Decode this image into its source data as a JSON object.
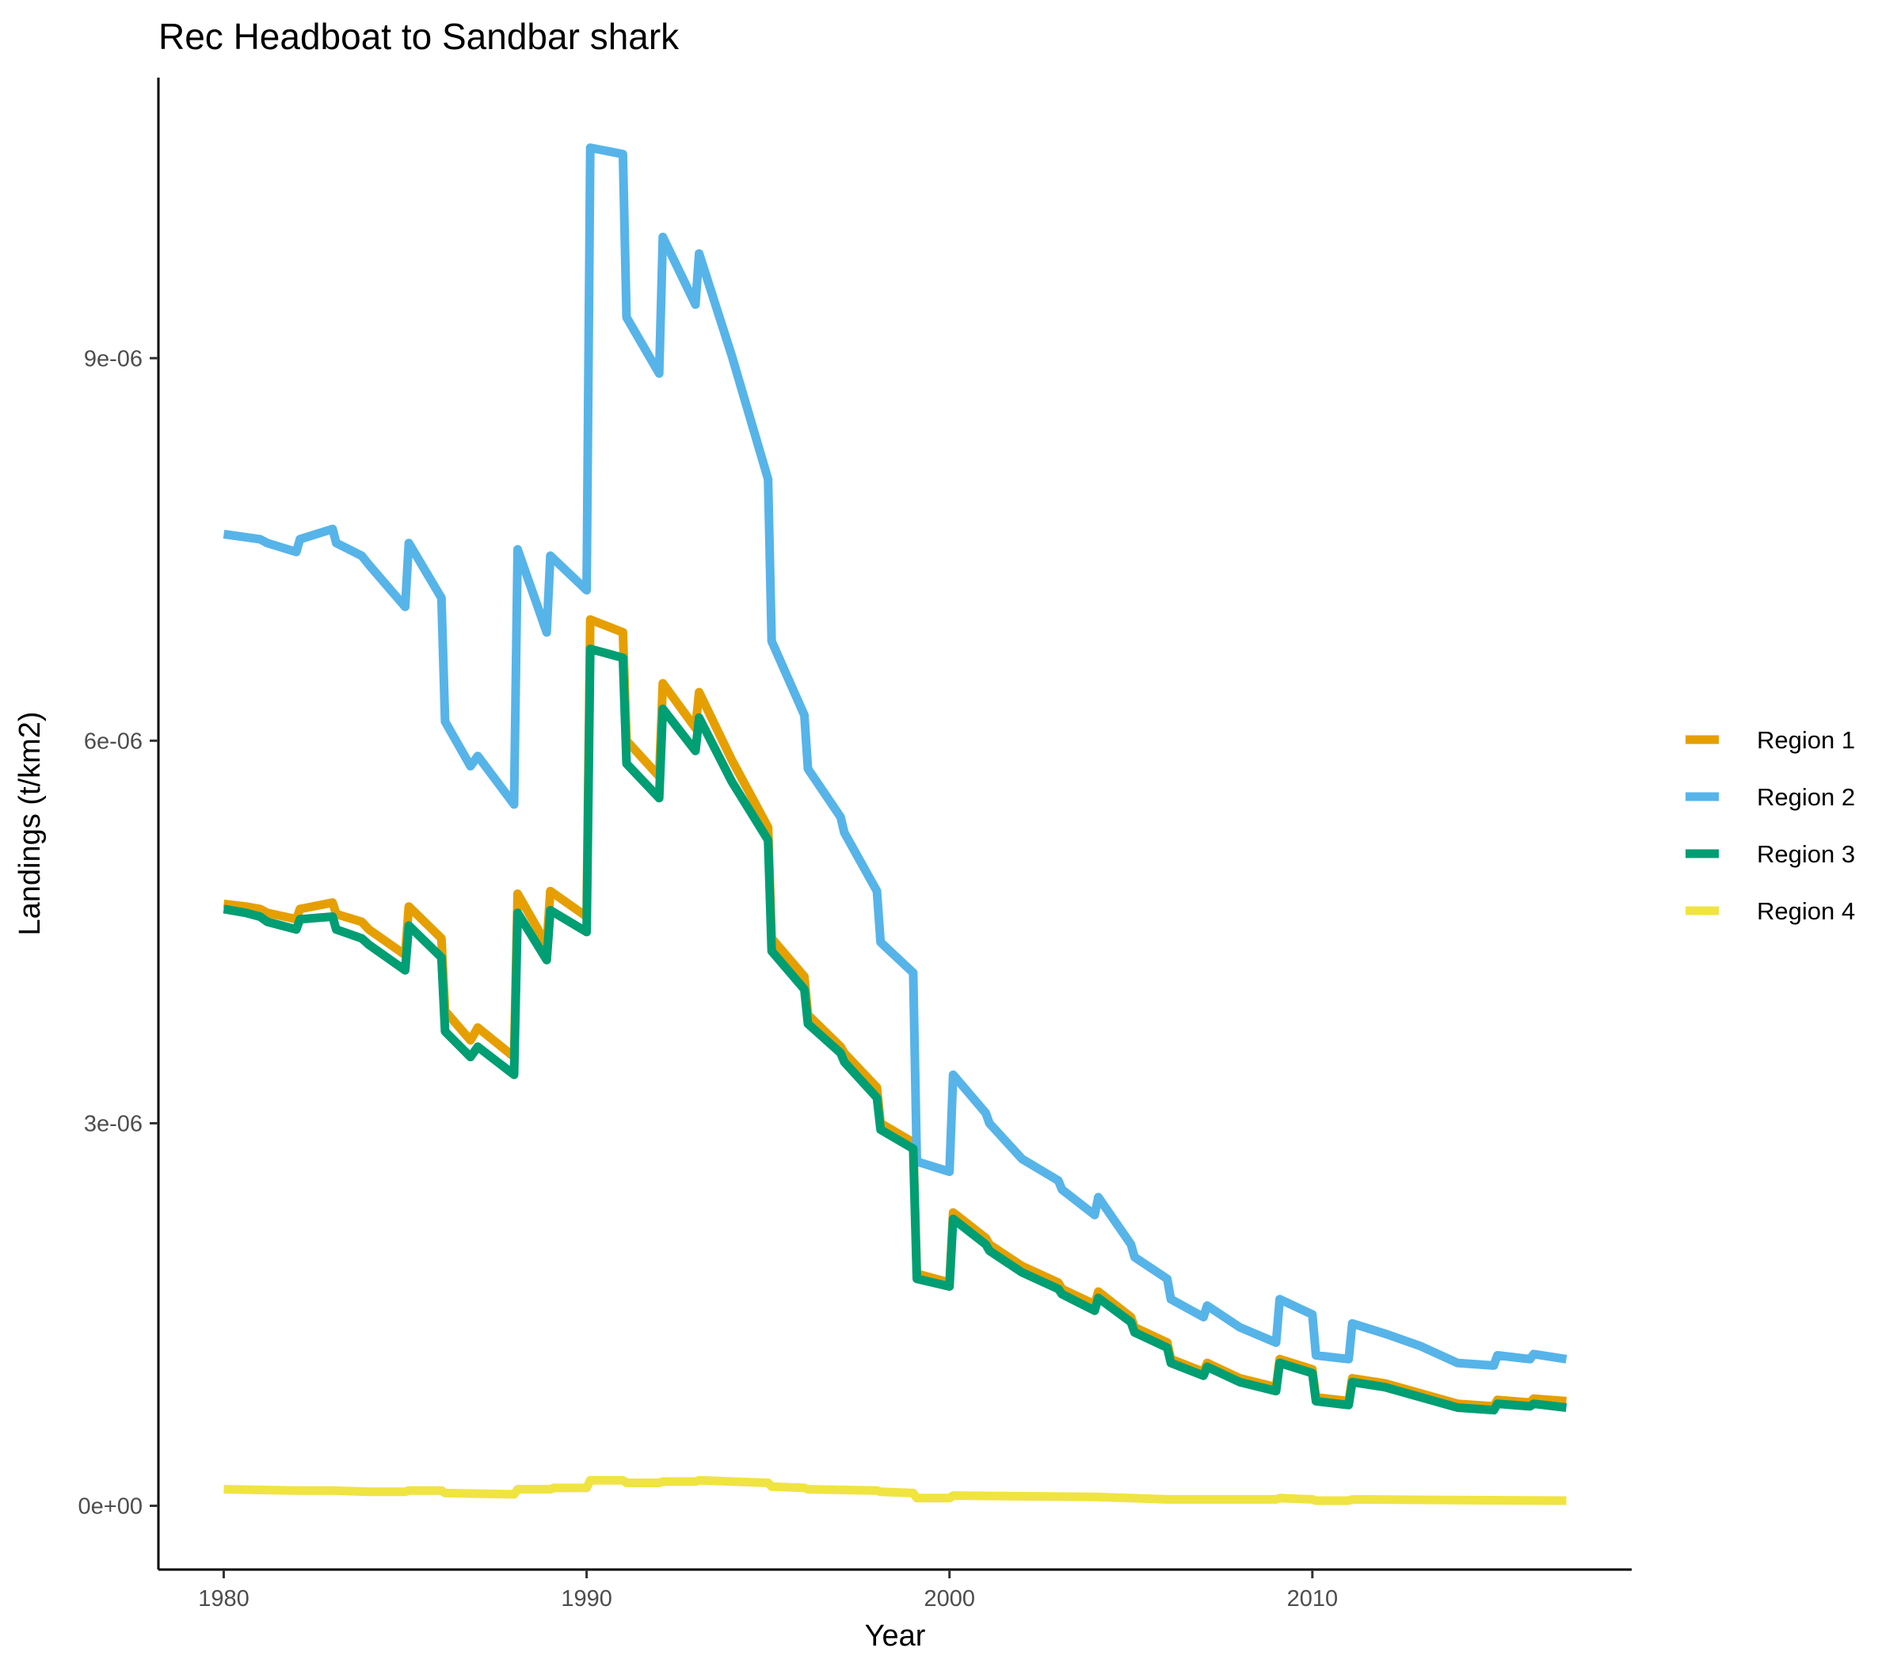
{
  "chart_data": {
    "type": "line",
    "title": "Rec Headboat to Sandbar shark",
    "xlabel": "Year",
    "ylabel": "Landings (t/km2)",
    "xlim": [
      1978.2,
      2018.8
    ],
    "ylim": [
      -5e-07,
      1.12e-05
    ],
    "x_ticks": [
      1980,
      1990,
      2000,
      2010
    ],
    "x_tick_labels": [
      "1980",
      "1990",
      "2000",
      "2010"
    ],
    "y_ticks": [
      0,
      3e-06,
      6e-06,
      9e-06
    ],
    "y_tick_labels": [
      "0e+00",
      "3e-06",
      "6e-06",
      "9e-06"
    ],
    "grid": false,
    "legend_position": "right",
    "series": [
      {
        "name": "Region 1",
        "color": "#E69F00",
        "points": [
          [
            1980.0,
            4.72e-06
          ],
          [
            1980.6,
            4.7e-06
          ],
          [
            1981.0,
            4.68e-06
          ],
          [
            1981.2,
            4.65e-06
          ],
          [
            1982.0,
            4.6e-06
          ],
          [
            1982.1,
            4.68e-06
          ],
          [
            1983.0,
            4.73e-06
          ],
          [
            1983.1,
            4.64e-06
          ],
          [
            1983.8,
            4.58e-06
          ],
          [
            1984.0,
            4.52e-06
          ],
          [
            1985.0,
            4.32e-06
          ],
          [
            1985.1,
            4.7e-06
          ],
          [
            1986.0,
            4.45e-06
          ],
          [
            1986.1,
            3.88e-06
          ],
          [
            1986.8,
            3.65e-06
          ],
          [
            1987.0,
            3.75e-06
          ],
          [
            1988.0,
            3.52e-06
          ],
          [
            1988.1,
            4.8e-06
          ],
          [
            1988.9,
            4.4e-06
          ],
          [
            1989.0,
            4.82e-06
          ],
          [
            1990.0,
            4.62e-06
          ],
          [
            1990.1,
            6.95e-06
          ],
          [
            1991.0,
            6.85e-06
          ],
          [
            1991.1,
            6e-06
          ],
          [
            1992.0,
            5.72e-06
          ],
          [
            1992.1,
            6.45e-06
          ],
          [
            1993.0,
            6.1e-06
          ],
          [
            1993.1,
            6.38e-06
          ],
          [
            1994.0,
            5.85e-06
          ],
          [
            1995.0,
            5.32e-06
          ],
          [
            1995.1,
            4.45e-06
          ],
          [
            1996.0,
            4.15e-06
          ],
          [
            1996.1,
            3.85e-06
          ],
          [
            1997.0,
            3.6e-06
          ],
          [
            1997.1,
            3.55e-06
          ],
          [
            1998.0,
            3.28e-06
          ],
          [
            1998.1,
            3e-06
          ],
          [
            1999.0,
            2.85e-06
          ],
          [
            1999.1,
            1.82e-06
          ],
          [
            2000.0,
            1.75e-06
          ],
          [
            2000.1,
            2.3e-06
          ],
          [
            2001.0,
            2.1e-06
          ],
          [
            2001.1,
            2.05e-06
          ],
          [
            2002.0,
            1.88e-06
          ],
          [
            2003.0,
            1.75e-06
          ],
          [
            2003.1,
            1.7e-06
          ],
          [
            2004.0,
            1.58e-06
          ],
          [
            2004.1,
            1.68e-06
          ],
          [
            2005.0,
            1.48e-06
          ],
          [
            2005.1,
            1.4e-06
          ],
          [
            2006.0,
            1.28e-06
          ],
          [
            2006.1,
            1.15e-06
          ],
          [
            2007.0,
            1.05e-06
          ],
          [
            2007.1,
            1.12e-06
          ],
          [
            2008.0,
            1e-06
          ],
          [
            2009.0,
            9.3e-07
          ],
          [
            2009.1,
            1.15e-06
          ],
          [
            2010.0,
            1.07e-06
          ],
          [
            2010.1,
            8.5e-07
          ],
          [
            2011.0,
            8.2e-07
          ],
          [
            2011.1,
            1e-06
          ],
          [
            2012.0,
            9.6e-07
          ],
          [
            2013.0,
            8.8e-07
          ],
          [
            2014.0,
            8e-07
          ],
          [
            2015.0,
            7.8e-07
          ],
          [
            2015.1,
            8.3e-07
          ],
          [
            2016.0,
            8.1e-07
          ],
          [
            2016.1,
            8.4e-07
          ],
          [
            2017.0,
            8.2e-07
          ]
        ]
      },
      {
        "name": "Region 2",
        "color": "#56B4E9",
        "points": [
          [
            1980.0,
            7.62e-06
          ],
          [
            1981.0,
            7.58e-06
          ],
          [
            1981.2,
            7.55e-06
          ],
          [
            1982.0,
            7.48e-06
          ],
          [
            1982.1,
            7.58e-06
          ],
          [
            1983.0,
            7.66e-06
          ],
          [
            1983.1,
            7.55e-06
          ],
          [
            1983.8,
            7.45e-06
          ],
          [
            1984.0,
            7.38e-06
          ],
          [
            1985.0,
            7.05e-06
          ],
          [
            1985.1,
            7.55e-06
          ],
          [
            1986.0,
            7.12e-06
          ],
          [
            1986.1,
            6.15e-06
          ],
          [
            1986.8,
            5.8e-06
          ],
          [
            1987.0,
            5.88e-06
          ],
          [
            1988.0,
            5.5e-06
          ],
          [
            1988.1,
            7.5e-06
          ],
          [
            1988.9,
            6.85e-06
          ],
          [
            1989.0,
            7.45e-06
          ],
          [
            1990.0,
            7.18e-06
          ],
          [
            1990.1,
            1.065e-05
          ],
          [
            1991.0,
            1.06e-05
          ],
          [
            1991.1,
            9.32e-06
          ],
          [
            1992.0,
            8.88e-06
          ],
          [
            1992.1,
            9.95e-06
          ],
          [
            1993.0,
            9.42e-06
          ],
          [
            1993.1,
            9.82e-06
          ],
          [
            1994.0,
            9.02e-06
          ],
          [
            1995.0,
            8.05e-06
          ],
          [
            1995.1,
            6.78e-06
          ],
          [
            1996.0,
            6.2e-06
          ],
          [
            1996.1,
            5.78e-06
          ],
          [
            1997.0,
            5.4e-06
          ],
          [
            1997.1,
            5.28e-06
          ],
          [
            1998.0,
            4.82e-06
          ],
          [
            1998.1,
            4.42e-06
          ],
          [
            1999.0,
            4.18e-06
          ],
          [
            1999.1,
            2.7e-06
          ],
          [
            2000.0,
            2.62e-06
          ],
          [
            2000.1,
            3.38e-06
          ],
          [
            2001.0,
            3.08e-06
          ],
          [
            2001.1,
            3e-06
          ],
          [
            2002.0,
            2.72e-06
          ],
          [
            2003.0,
            2.55e-06
          ],
          [
            2003.1,
            2.48e-06
          ],
          [
            2004.0,
            2.28e-06
          ],
          [
            2004.1,
            2.42e-06
          ],
          [
            2005.0,
            2.05e-06
          ],
          [
            2005.1,
            1.95e-06
          ],
          [
            2006.0,
            1.78e-06
          ],
          [
            2006.1,
            1.62e-06
          ],
          [
            2007.0,
            1.48e-06
          ],
          [
            2007.1,
            1.57e-06
          ],
          [
            2008.0,
            1.4e-06
          ],
          [
            2009.0,
            1.28e-06
          ],
          [
            2009.1,
            1.62e-06
          ],
          [
            2010.0,
            1.5e-06
          ],
          [
            2010.1,
            1.18e-06
          ],
          [
            2011.0,
            1.15e-06
          ],
          [
            2011.1,
            1.43e-06
          ],
          [
            2012.0,
            1.35e-06
          ],
          [
            2013.0,
            1.25e-06
          ],
          [
            2014.0,
            1.12e-06
          ],
          [
            2015.0,
            1.1e-06
          ],
          [
            2015.1,
            1.18e-06
          ],
          [
            2016.0,
            1.15e-06
          ],
          [
            2016.1,
            1.19e-06
          ],
          [
            2017.0,
            1.15e-06
          ]
        ]
      },
      {
        "name": "Region 3",
        "color": "#009E73",
        "points": [
          [
            1980.0,
            4.68e-06
          ],
          [
            1980.6,
            4.65e-06
          ],
          [
            1981.0,
            4.62e-06
          ],
          [
            1981.2,
            4.58e-06
          ],
          [
            1982.0,
            4.52e-06
          ],
          [
            1982.1,
            4.6e-06
          ],
          [
            1983.0,
            4.62e-06
          ],
          [
            1983.1,
            4.52e-06
          ],
          [
            1983.8,
            4.45e-06
          ],
          [
            1984.0,
            4.4e-06
          ],
          [
            1985.0,
            4.2e-06
          ],
          [
            1985.1,
            4.55e-06
          ],
          [
            1986.0,
            4.3e-06
          ],
          [
            1986.1,
            3.72e-06
          ],
          [
            1986.8,
            3.52e-06
          ],
          [
            1987.0,
            3.6e-06
          ],
          [
            1988.0,
            3.38e-06
          ],
          [
            1988.1,
            4.65e-06
          ],
          [
            1988.9,
            4.28e-06
          ],
          [
            1989.0,
            4.67e-06
          ],
          [
            1990.0,
            4.5e-06
          ],
          [
            1990.1,
            6.72e-06
          ],
          [
            1991.0,
            6.65e-06
          ],
          [
            1991.1,
            5.82e-06
          ],
          [
            1992.0,
            5.55e-06
          ],
          [
            1992.1,
            6.25e-06
          ],
          [
            1993.0,
            5.92e-06
          ],
          [
            1993.1,
            6.18e-06
          ],
          [
            1994.0,
            5.68e-06
          ],
          [
            1995.0,
            5.22e-06
          ],
          [
            1995.1,
            4.35e-06
          ],
          [
            1996.0,
            4.05e-06
          ],
          [
            1996.1,
            3.78e-06
          ],
          [
            1997.0,
            3.55e-06
          ],
          [
            1997.1,
            3.48e-06
          ],
          [
            1998.0,
            3.2e-06
          ],
          [
            1998.1,
            2.95e-06
          ],
          [
            1999.0,
            2.8e-06
          ],
          [
            1999.1,
            1.78e-06
          ],
          [
            2000.0,
            1.72e-06
          ],
          [
            2000.1,
            2.25e-06
          ],
          [
            2001.0,
            2.05e-06
          ],
          [
            2001.1,
            2e-06
          ],
          [
            2002.0,
            1.83e-06
          ],
          [
            2003.0,
            1.7e-06
          ],
          [
            2003.1,
            1.66e-06
          ],
          [
            2004.0,
            1.53e-06
          ],
          [
            2004.1,
            1.63e-06
          ],
          [
            2005.0,
            1.44e-06
          ],
          [
            2005.1,
            1.36e-06
          ],
          [
            2006.0,
            1.24e-06
          ],
          [
            2006.1,
            1.12e-06
          ],
          [
            2007.0,
            1.02e-06
          ],
          [
            2007.1,
            1.09e-06
          ],
          [
            2008.0,
            9.7e-07
          ],
          [
            2009.0,
            9e-07
          ],
          [
            2009.1,
            1.12e-06
          ],
          [
            2010.0,
            1.04e-06
          ],
          [
            2010.1,
            8.2e-07
          ],
          [
            2011.0,
            7.9e-07
          ],
          [
            2011.1,
            9.7e-07
          ],
          [
            2012.0,
            9.3e-07
          ],
          [
            2013.0,
            8.5e-07
          ],
          [
            2014.0,
            7.7e-07
          ],
          [
            2015.0,
            7.5e-07
          ],
          [
            2015.1,
            8e-07
          ],
          [
            2016.0,
            7.8e-07
          ],
          [
            2016.1,
            8e-07
          ],
          [
            2017.0,
            7.7e-07
          ]
        ]
      },
      {
        "name": "Region 4",
        "color": "#F0E442",
        "points": [
          [
            1980.0,
            1.3e-07
          ],
          [
            1982.0,
            1.2e-07
          ],
          [
            1983.0,
            1.2e-07
          ],
          [
            1984.0,
            1.1e-07
          ],
          [
            1985.0,
            1.1e-07
          ],
          [
            1985.1,
            1.2e-07
          ],
          [
            1986.0,
            1.2e-07
          ],
          [
            1986.1,
            1e-07
          ],
          [
            1988.0,
            9e-08
          ],
          [
            1988.1,
            1.3e-07
          ],
          [
            1989.0,
            1.3e-07
          ],
          [
            1989.1,
            1.4e-07
          ],
          [
            1990.0,
            1.4e-07
          ],
          [
            1990.1,
            2e-07
          ],
          [
            1991.0,
            2e-07
          ],
          [
            1991.1,
            1.8e-07
          ],
          [
            1992.0,
            1.8e-07
          ],
          [
            1992.1,
            1.9e-07
          ],
          [
            1993.0,
            1.9e-07
          ],
          [
            1993.1,
            2e-07
          ],
          [
            1994.0,
            1.9e-07
          ],
          [
            1995.0,
            1.8e-07
          ],
          [
            1995.1,
            1.5e-07
          ],
          [
            1996.0,
            1.4e-07
          ],
          [
            1996.1,
            1.3e-07
          ],
          [
            1998.0,
            1.2e-07
          ],
          [
            1998.1,
            1.1e-07
          ],
          [
            1999.0,
            1e-07
          ],
          [
            1999.1,
            6e-08
          ],
          [
            2000.0,
            6e-08
          ],
          [
            2000.1,
            8e-08
          ],
          [
            2004.0,
            7e-08
          ],
          [
            2005.0,
            6e-08
          ],
          [
            2006.0,
            5e-08
          ],
          [
            2009.0,
            5e-08
          ],
          [
            2009.1,
            6e-08
          ],
          [
            2010.0,
            5e-08
          ],
          [
            2010.1,
            4e-08
          ],
          [
            2011.0,
            4e-08
          ],
          [
            2011.1,
            5e-08
          ],
          [
            2017.0,
            4e-08
          ]
        ]
      }
    ]
  }
}
